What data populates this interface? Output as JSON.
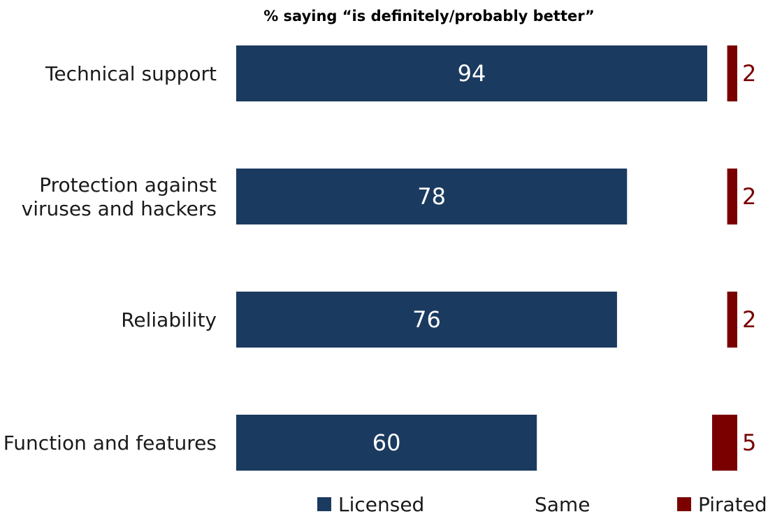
{
  "chart_data": {
    "type": "bar",
    "orientation": "horizontal",
    "title": "% saying “is definitely/probably better”",
    "categories": [
      [
        "Technical support"
      ],
      [
        "Protection against",
        "viruses and hackers"
      ],
      [
        "Reliability"
      ],
      [
        "Function and features"
      ]
    ],
    "series": [
      {
        "name": "Licensed",
        "values": [
          94,
          78,
          76,
          60
        ],
        "color": "#1b3a60"
      },
      {
        "name": "Pirated",
        "values": [
          2,
          2,
          2,
          5
        ],
        "color": "#7a0000"
      }
    ],
    "middle_legend": "Same",
    "legend_position": "bottom",
    "grid": false
  }
}
